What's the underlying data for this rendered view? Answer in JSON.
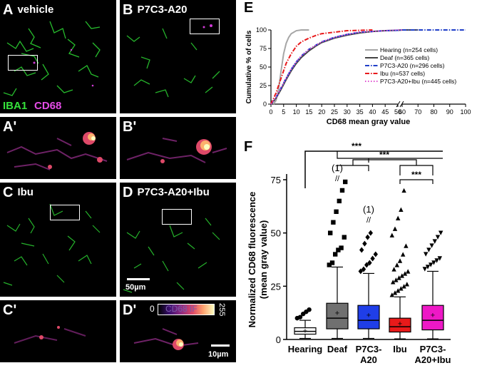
{
  "panels": {
    "A": {
      "letter": "A",
      "title": "vehicle"
    },
    "B": {
      "letter": "B",
      "title": "P7C3-A20"
    },
    "C": {
      "letter": "C",
      "title": "Ibu"
    },
    "D": {
      "letter": "D",
      "title": "P7C3-A20+Ibu"
    },
    "A2": {
      "letter": "A'"
    },
    "B2": {
      "letter": "B'"
    },
    "C2": {
      "letter": "C'"
    },
    "D2": {
      "letter": "D'"
    },
    "E": {
      "letter": "E"
    },
    "F": {
      "letter": "F"
    }
  },
  "stain_labels": {
    "iba1": "IBA1",
    "cd68": "CD68"
  },
  "scale_bars": {
    "large": "50µm",
    "small": "10µm"
  },
  "colorbar": {
    "min": "0",
    "label": "CD68 IF",
    "max": "255"
  },
  "colors": {
    "iba1": "#35e23b",
    "cd68": "#e44ce6"
  },
  "chart_data": [
    {
      "id": "E",
      "type": "line",
      "xlabel": "CD68 mean gray value",
      "ylabel": "Cumulative % of cells",
      "xticks": [
        0,
        5,
        10,
        15,
        20,
        25,
        30,
        35,
        40,
        45,
        50,
        60,
        70,
        80,
        90,
        100
      ],
      "yticks": [
        0,
        25,
        50,
        75,
        100
      ],
      "xlim": [
        0,
        100
      ],
      "ylim": [
        0,
        100
      ],
      "axis_break": "between 50 and 60",
      "legend_position": "center-right",
      "series": [
        {
          "name": "Hearing (n=254 cells)",
          "color": "#a6a6a6",
          "style": "solid",
          "x": [
            1,
            2,
            3,
            4,
            5,
            6,
            7,
            8,
            10,
            12,
            15
          ],
          "y": [
            0,
            5,
            20,
            45,
            68,
            82,
            90,
            95,
            99,
            100,
            100
          ]
        },
        {
          "name": "Deaf (n=365 cells)",
          "color": "#444444",
          "style": "solid",
          "x": [
            0,
            2,
            4,
            6,
            8,
            10,
            12,
            15,
            18,
            20,
            25,
            30,
            35,
            40,
            45,
            50,
            60,
            70
          ],
          "y": [
            0,
            8,
            20,
            33,
            45,
            55,
            63,
            72,
            79,
            83,
            89,
            93,
            96,
            98,
            99,
            99.5,
            100,
            100
          ]
        },
        {
          "name": "P7C3-A20 (n=296 cells)",
          "color": "#1f3ec8",
          "style": "dash-dot",
          "x": [
            0,
            2,
            4,
            6,
            8,
            10,
            12,
            15,
            18,
            20,
            25,
            30,
            35,
            40,
            45,
            50,
            60,
            70,
            80,
            90,
            100
          ],
          "y": [
            0,
            9,
            22,
            35,
            47,
            57,
            65,
            74,
            80,
            84,
            90,
            94,
            97,
            98,
            99,
            99.5,
            100,
            100,
            100,
            100,
            100
          ]
        },
        {
          "name": "Ibu (n=537 cells)",
          "color": "#e8191b",
          "style": "dash-dot",
          "x": [
            0,
            2,
            4,
            6,
            8,
            10,
            12,
            15,
            18,
            20,
            25,
            30,
            35,
            40
          ],
          "y": [
            0,
            15,
            35,
            55,
            68,
            78,
            84,
            89,
            93,
            95,
            97,
            99,
            99.5,
            100
          ]
        },
        {
          "name": "P7C3-A20+Ibu (n=445 cells)",
          "color": "#e04fd0",
          "style": "dotted",
          "x": [
            0,
            2,
            4,
            6,
            8,
            10,
            12,
            15,
            18,
            20,
            25,
            30,
            35,
            40,
            45,
            50,
            60
          ],
          "y": [
            0,
            9,
            22,
            35,
            47,
            57,
            65,
            74,
            80,
            84,
            90,
            94,
            97,
            98,
            99,
            100,
            100
          ]
        }
      ]
    },
    {
      "id": "F",
      "type": "box",
      "ylabel": "Normalized CD68 fluorescence (mean gray value)",
      "ylabel_lines": [
        "Normalized CD68 fluorescence",
        "(mean gray value)"
      ],
      "yticks": [
        0,
        25,
        50,
        75
      ],
      "ylim": [
        0,
        75
      ],
      "categories": [
        {
          "label": [
            "Hearing"
          ],
          "color": "#ffffff",
          "marker": "circle",
          "q1": 2.5,
          "median": 3.8,
          "q3": 5.5,
          "mean": 4.2,
          "whisker_low": 0.5,
          "whisker_high": 9,
          "outliers": [
            10,
            10.5,
            12,
            13,
            14
          ],
          "break_label": ""
        },
        {
          "label": [
            "Deaf"
          ],
          "color": "#707070",
          "marker": "square",
          "q1": 5,
          "median": 10,
          "q3": 17,
          "mean": 12.5,
          "whisker_low": 0.5,
          "whisker_high": 34,
          "outliers": [
            35,
            36,
            40,
            42,
            43,
            48,
            50,
            55,
            60,
            65,
            70,
            74
          ],
          "break_label": "(1)"
        },
        {
          "label": [
            "P7C3-",
            "A20"
          ],
          "color": "#1f3ee8",
          "marker": "diamond",
          "q1": 5,
          "median": 9,
          "q3": 16,
          "mean": 11.5,
          "whisker_low": 0.5,
          "whisker_high": 31,
          "outliers": [
            32,
            33,
            35,
            36,
            38,
            40,
            42,
            45,
            48,
            50
          ],
          "break_label": "(1)"
        },
        {
          "label": [
            "Ibu"
          ],
          "color": "#e81a1a",
          "marker": "triangle",
          "q1": 3.5,
          "median": 6,
          "q3": 10,
          "mean": 7.5,
          "whisker_low": 0.3,
          "whisker_high": 20,
          "outliers": [
            21,
            22,
            23,
            24,
            25,
            26,
            27,
            28,
            29,
            30,
            31,
            32,
            33,
            35,
            37,
            40,
            44,
            49,
            52,
            57,
            61,
            70
          ],
          "break_label": ""
        },
        {
          "label": [
            "P7C3-",
            "A20+Ibu"
          ],
          "color": "#ee18c6",
          "marker": "triangle-down",
          "q1": 4.5,
          "median": 9,
          "q3": 16,
          "mean": 11.5,
          "whisker_low": 0.3,
          "whisker_high": 32,
          "outliers": [
            33,
            34,
            35,
            36,
            37,
            38,
            40,
            42,
            44,
            46,
            48,
            50
          ],
          "break_label": ""
        }
      ],
      "significance": [
        {
          "from": [
            1,
            2,
            3,
            4
          ],
          "to": [
            0
          ],
          "label": "***"
        },
        {
          "from": [
            1,
            2
          ],
          "to": [
            3,
            4
          ],
          "label": "***"
        },
        {
          "from": [
            3
          ],
          "to": [
            4
          ],
          "label": "***"
        }
      ]
    }
  ]
}
